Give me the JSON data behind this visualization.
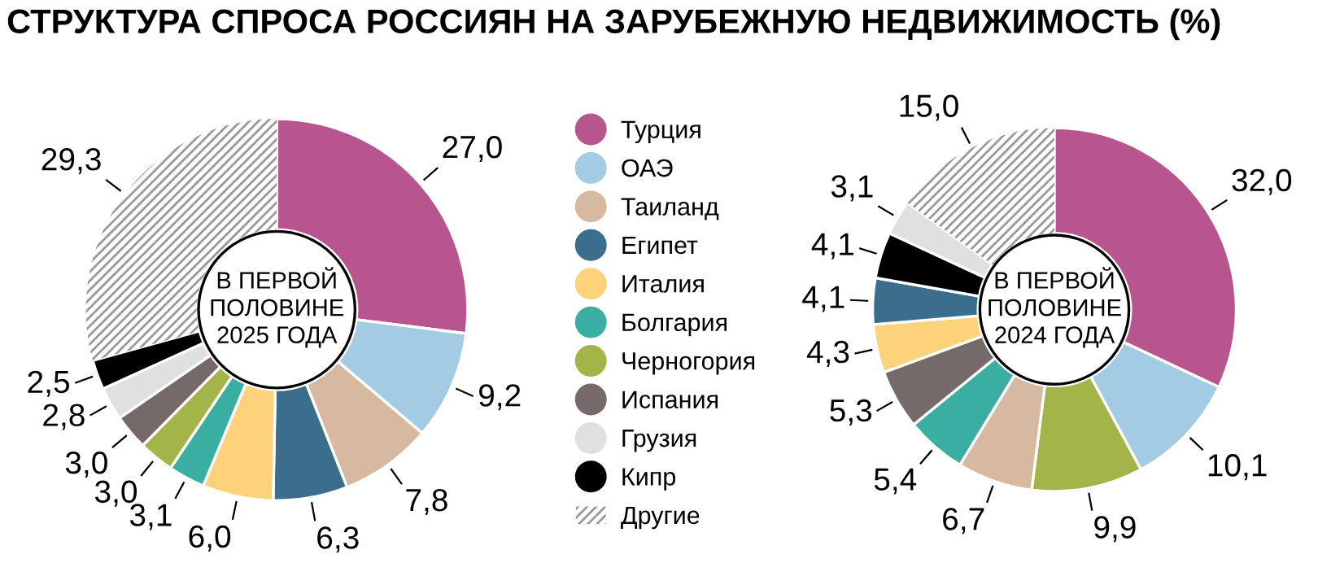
{
  "chart_data": [
    {
      "type": "donut",
      "title": "СТРУКТУРА СПРОСА РОССИЯН НА ЗАРУБЕЖНУЮ НЕДВИЖИМОСТЬ (%)",
      "legend": "right",
      "categories": [
        "Турция",
        "ОАЭ",
        "Таиланд",
        "Египет",
        "Италия",
        "Болгария",
        "Черногория",
        "Испания",
        "Грузия",
        "Кипр",
        "Другие"
      ],
      "values": [
        27.0,
        9.2,
        7.8,
        6.3,
        6.0,
        3.1,
        3.0,
        3.0,
        2.8,
        2.5,
        29.3
      ],
      "value_labels": [
        "27,0",
        "9,2",
        "7,8",
        "6,3",
        "6,0",
        "3,1",
        "3,0",
        "3,0",
        "2,8",
        "2,5",
        "29,3"
      ],
      "colors": [
        "#b9558e",
        "#a3cbe4",
        "#d7b8a0",
        "#3b6e8c",
        "#fdd27a",
        "#3aaea0",
        "#a3b449",
        "#76696a",
        "#e0e0e0",
        "#000000",
        "#ffffff"
      ],
      "annotations": [
        "В ПЕРВОЙ\nПОЛОВИНЕ\n2025 ГОДА"
      ]
    },
    {
      "type": "donut",
      "categories": [
        null,
        null,
        null,
        null,
        null,
        null,
        null,
        null,
        null,
        null,
        null
      ],
      "values": [
        32.0,
        10.1,
        9.9,
        6.7,
        5.4,
        5.3,
        4.3,
        4.1,
        4.1,
        3.1,
        15.0
      ],
      "value_labels": [
        "32,0",
        "10,1",
        "9,9",
        "6,7",
        "5,4",
        "5,3",
        "4,3",
        "4,1",
        "4,1",
        "3,1",
        "15,0"
      ],
      "colors": [
        "#b9558e",
        "#a3cbe4",
        "#a3b449",
        "#d7b8a0",
        "#3aaea0",
        "#76696a",
        "#fdd27a",
        "#3b6e8c",
        "#000000",
        "#e0e0e0",
        "#ffffff"
      ],
      "annotations": [
        "В ПЕРВОЙ\nПОЛОВИНЕ\n2024 ГОДА"
      ]
    }
  ]
}
